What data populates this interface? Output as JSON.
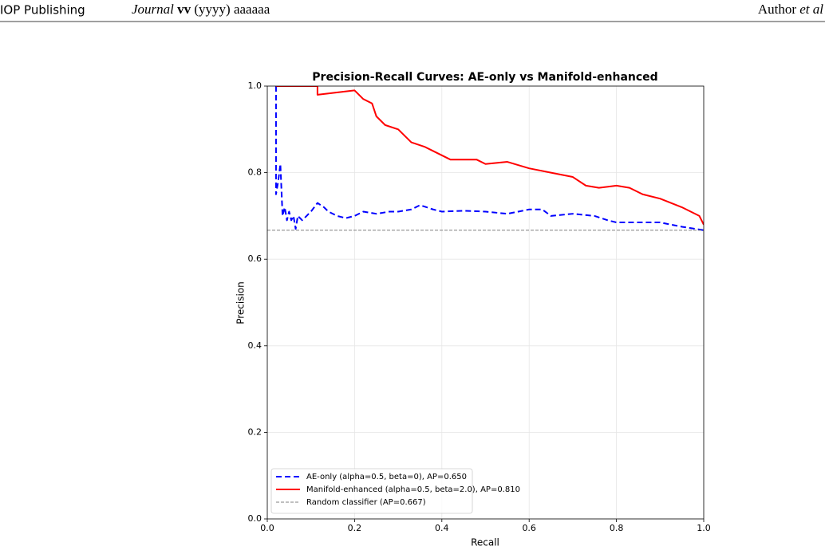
{
  "header": {
    "publisher": "IOP Publishing",
    "journal_name": "Journal",
    "volume": "vv",
    "year_pages": "(yyyy) aaaaaa",
    "author": "Author",
    "et_al": "et al"
  },
  "chart_data": {
    "type": "line",
    "title": "Precision-Recall Curves: AE-only vs Manifold-enhanced",
    "x_label": "Recall",
    "y_label": "Precision",
    "xlim": [
      0,
      1
    ],
    "ylim": [
      0,
      1
    ],
    "xticks": [
      {
        "value": 0,
        "label": "0.0"
      },
      0.2,
      0.4,
      0.6,
      0.8,
      {
        "value": 1,
        "label": "1.0"
      }
    ],
    "yticks": [
      {
        "value": 0,
        "label": "0.0"
      },
      0.2,
      0.4,
      0.6,
      0.8,
      {
        "value": 1,
        "label": "1.0"
      }
    ],
    "grid": true,
    "legend": "lower left",
    "series": [
      {
        "name": "AE-only (alpha=0.5, beta=0), AP=0.650",
        "color": "#0000ff",
        "linestyle": "dashed",
        "linewidth": 2,
        "x": [
          0.02,
          0.02,
          0.025,
          0.03,
          0.035,
          0.04,
          0.045,
          0.05,
          0.055,
          0.06,
          0.065,
          0.07,
          0.08,
          0.09,
          0.1,
          0.115,
          0.13,
          0.14,
          0.16,
          0.18,
          0.2,
          0.22,
          0.25,
          0.28,
          0.3,
          0.33,
          0.35,
          0.38,
          0.4,
          0.45,
          0.5,
          0.55,
          0.6,
          0.63,
          0.65,
          0.7,
          0.75,
          0.78,
          0.8,
          0.85,
          0.9,
          0.95,
          1.0
        ],
        "values": [
          1.0,
          0.75,
          0.78,
          0.82,
          0.7,
          0.72,
          0.69,
          0.71,
          0.69,
          0.7,
          0.67,
          0.7,
          0.69,
          0.7,
          0.71,
          0.73,
          0.72,
          0.71,
          0.7,
          0.695,
          0.7,
          0.71,
          0.705,
          0.71,
          0.71,
          0.715,
          0.725,
          0.715,
          0.71,
          0.712,
          0.71,
          0.705,
          0.715,
          0.715,
          0.7,
          0.705,
          0.7,
          0.69,
          0.685,
          0.685,
          0.685,
          0.675,
          0.667
        ]
      },
      {
        "name": "Manifold-enhanced (alpha=0.5, beta=2.0), AP=0.810",
        "color": "#ff0000",
        "linestyle": "solid",
        "linewidth": 2,
        "x": [
          0.02,
          0.115,
          0.115,
          0.2,
          0.22,
          0.24,
          0.25,
          0.27,
          0.3,
          0.33,
          0.36,
          0.38,
          0.42,
          0.48,
          0.5,
          0.55,
          0.6,
          0.65,
          0.7,
          0.73,
          0.76,
          0.8,
          0.83,
          0.86,
          0.9,
          0.95,
          0.99,
          1.0
        ],
        "values": [
          1.0,
          1.0,
          0.98,
          0.99,
          0.97,
          0.96,
          0.93,
          0.91,
          0.9,
          0.87,
          0.86,
          0.85,
          0.83,
          0.83,
          0.82,
          0.825,
          0.81,
          0.8,
          0.79,
          0.77,
          0.765,
          0.77,
          0.765,
          0.75,
          0.74,
          0.72,
          0.7,
          0.68
        ]
      },
      {
        "name": "Random classifier (AP=0.667)",
        "color": "#808080",
        "linestyle": "dashed",
        "linewidth": 1,
        "x": [
          0,
          1
        ],
        "values": [
          0.667,
          0.667
        ]
      }
    ]
  }
}
